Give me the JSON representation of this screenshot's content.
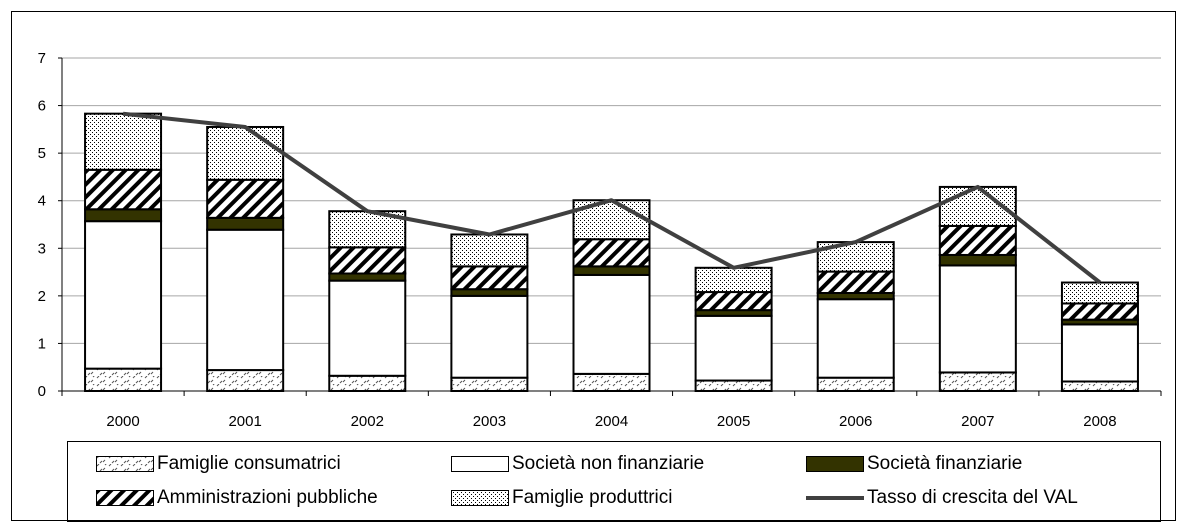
{
  "chart_data": {
    "type": "bar",
    "stacked": true,
    "categories": [
      "2000",
      "2001",
      "2002",
      "2003",
      "2004",
      "2005",
      "2006",
      "2007",
      "2008"
    ],
    "ylim": [
      0,
      7
    ],
    "yticks": [
      "0",
      "1",
      "2",
      "3",
      "4",
      "5",
      "6",
      "7"
    ],
    "grid": true,
    "legend_position": "bottom",
    "series": [
      {
        "name": "Famiglie consumatrici",
        "pattern": "dashes",
        "values": [
          0.47,
          0.44,
          0.32,
          0.28,
          0.36,
          0.22,
          0.28,
          0.39,
          0.2
        ]
      },
      {
        "name": "Società non finanziarie",
        "pattern": "white",
        "values": [
          3.1,
          2.95,
          2.0,
          1.72,
          2.08,
          1.36,
          1.65,
          2.25,
          1.2
        ]
      },
      {
        "name": "Società finanziarie",
        "pattern": "solid",
        "color": "#333300",
        "values": [
          0.25,
          0.25,
          0.15,
          0.14,
          0.18,
          0.12,
          0.13,
          0.22,
          0.1
        ]
      },
      {
        "name": "Amministrazioni pubbliche",
        "pattern": "diagonal",
        "values": [
          0.83,
          0.8,
          0.55,
          0.48,
          0.57,
          0.38,
          0.45,
          0.61,
          0.34
        ]
      },
      {
        "name": "Famiglie produttrici",
        "pattern": "dots",
        "values": [
          1.18,
          1.11,
          0.76,
          0.67,
          0.82,
          0.51,
          0.62,
          0.82,
          0.44
        ]
      }
    ],
    "line": {
      "name": "Tasso di crescita del VAL",
      "color": "#404040",
      "values": [
        5.83,
        5.55,
        3.78,
        3.29,
        4.01,
        2.59,
        3.13,
        4.29,
        2.28
      ]
    }
  }
}
